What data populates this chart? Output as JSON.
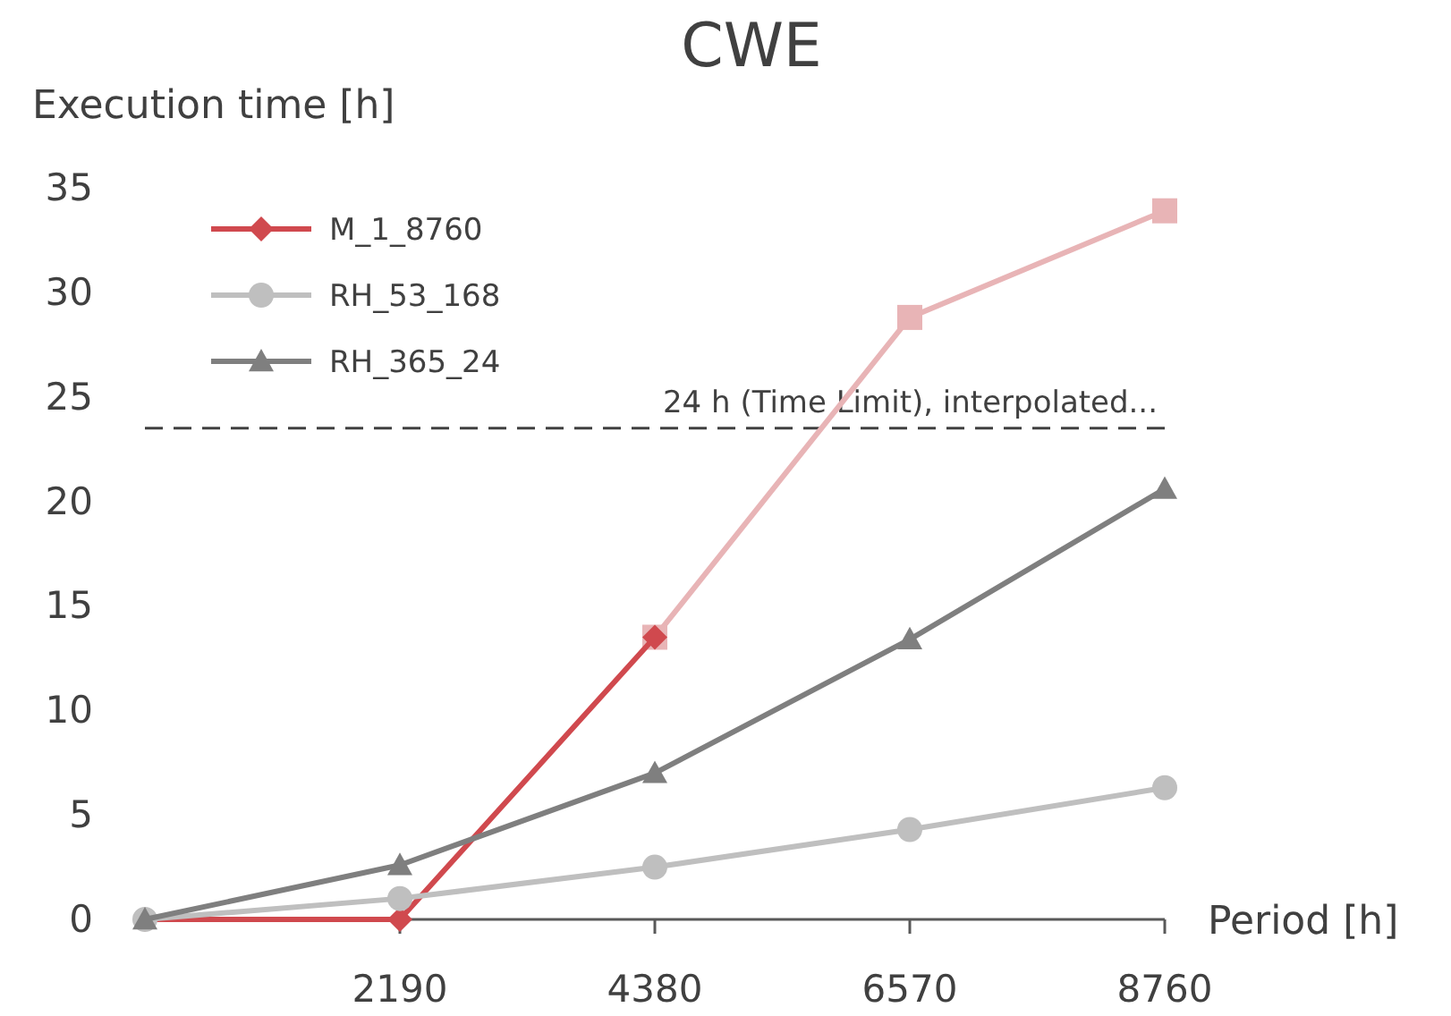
{
  "chart_data": {
    "type": "line",
    "title": "CWE",
    "xlabel": "Period [h]",
    "ylabel": "Execution time [h]",
    "x": [
      0,
      2190,
      4380,
      6570,
      8760
    ],
    "series": [
      {
        "color": "#e8b4b6",
        "marker": "square",
        "x": [
          4380,
          6570,
          8760
        ],
        "values": [
          13.5,
          28.8,
          33.9
        ]
      },
      {
        "name": "M_1_8760",
        "color": "#d0494e",
        "marker": "diamond",
        "x": [
          0,
          2190,
          4380
        ],
        "values": [
          0,
          0,
          13.5
        ]
      },
      {
        "name": "RH_53_168",
        "color": "#bfbfbf",
        "marker": "circle",
        "values": [
          0,
          1,
          2.5,
          4.3,
          6.3
        ]
      },
      {
        "name": "RH_365_24",
        "color": "#7f7f7f",
        "marker": "triangle",
        "values": [
          0,
          2.6,
          7,
          13.4,
          20.6
        ]
      }
    ],
    "xlim": [
      0,
      8760
    ],
    "xticks": [
      2190,
      4380,
      6570,
      8760
    ],
    "ylim": [
      0,
      35
    ],
    "yticks": [
      0,
      5,
      10,
      15,
      20,
      25,
      30,
      35
    ],
    "ref_lines": [
      {
        "axis": "y",
        "value": 23.5,
        "label": "24 h (Time Limit), interpolated...",
        "color": "#404040",
        "line_style": "dashed"
      }
    ],
    "grid": false,
    "legend": "top left",
    "line_style": "solid"
  }
}
